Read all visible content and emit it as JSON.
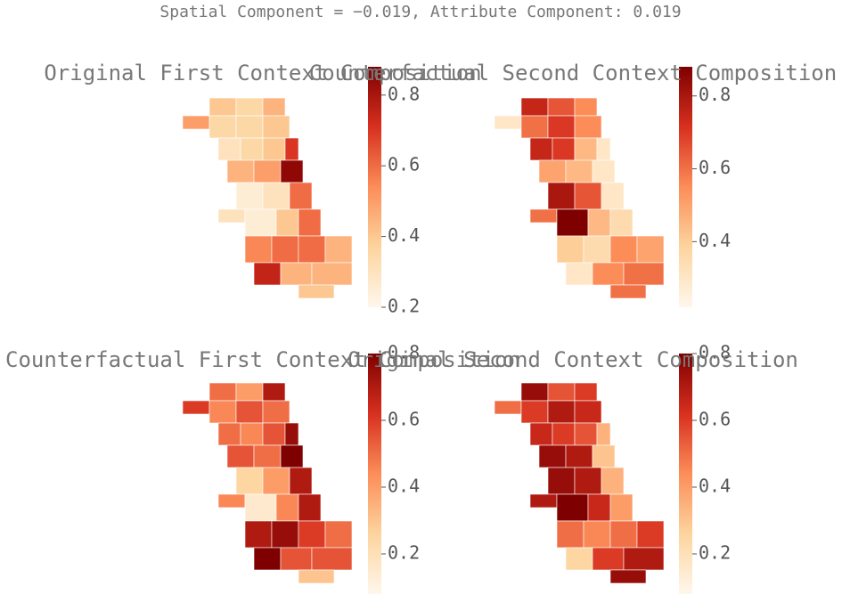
{
  "title": "Spatial Component = −0.019, Attribute Component: 0.019",
  "panels": [
    {
      "title": "Original First Context Composition",
      "colorbar": {
        "vmin": 0.2,
        "vmax": 0.88,
        "ticks": [
          0.2,
          0.4,
          0.6,
          0.8
        ]
      },
      "regions": [
        0.4,
        0.35,
        0.45,
        0.5,
        0.35,
        0.35,
        0.4,
        0.3,
        0.35,
        0.4,
        0.7,
        0.45,
        0.5,
        0.85,
        0.25,
        0.3,
        0.6,
        0.3,
        0.25,
        0.4,
        0.6,
        0.55,
        0.6,
        0.6,
        0.45,
        0.75,
        0.45,
        0.45,
        0.4
      ]
    },
    {
      "title": "Counterfactual Second Context Composition",
      "colorbar": {
        "vmin": 0.22,
        "vmax": 0.88,
        "ticks": [
          0.4,
          0.6,
          0.8
        ]
      },
      "regions": [
        0.75,
        0.65,
        0.55,
        0.3,
        0.6,
        0.7,
        0.55,
        0.75,
        0.7,
        0.45,
        0.3,
        0.5,
        0.45,
        0.3,
        0.8,
        0.65,
        0.3,
        0.6,
        0.88,
        0.45,
        0.35,
        0.4,
        0.35,
        0.55,
        0.5,
        0.3,
        0.55,
        0.6,
        0.6
      ]
    },
    {
      "title": "Counterfactual First Context Composition",
      "colorbar": {
        "vmin": 0.08,
        "vmax": 0.8,
        "ticks": [
          0.2,
          0.4,
          0.6,
          0.8
        ]
      },
      "regions": [
        0.5,
        0.4,
        0.7,
        0.6,
        0.45,
        0.55,
        0.5,
        0.5,
        0.45,
        0.55,
        0.75,
        0.55,
        0.5,
        0.8,
        0.25,
        0.4,
        0.7,
        0.45,
        0.15,
        0.45,
        0.7,
        0.7,
        0.75,
        0.6,
        0.5,
        0.8,
        0.55,
        0.55,
        0.3
      ]
    },
    {
      "title": "Original Second Context Composition",
      "colorbar": {
        "vmin": 0.08,
        "vmax": 0.8,
        "ticks": [
          0.2,
          0.4,
          0.6,
          0.8
        ]
      },
      "regions": [
        0.75,
        0.55,
        0.6,
        0.5,
        0.6,
        0.7,
        0.65,
        0.65,
        0.6,
        0.55,
        0.35,
        0.75,
        0.7,
        0.3,
        0.75,
        0.7,
        0.35,
        0.7,
        0.8,
        0.65,
        0.4,
        0.5,
        0.45,
        0.5,
        0.6,
        0.25,
        0.6,
        0.7,
        0.75
      ]
    }
  ]
}
